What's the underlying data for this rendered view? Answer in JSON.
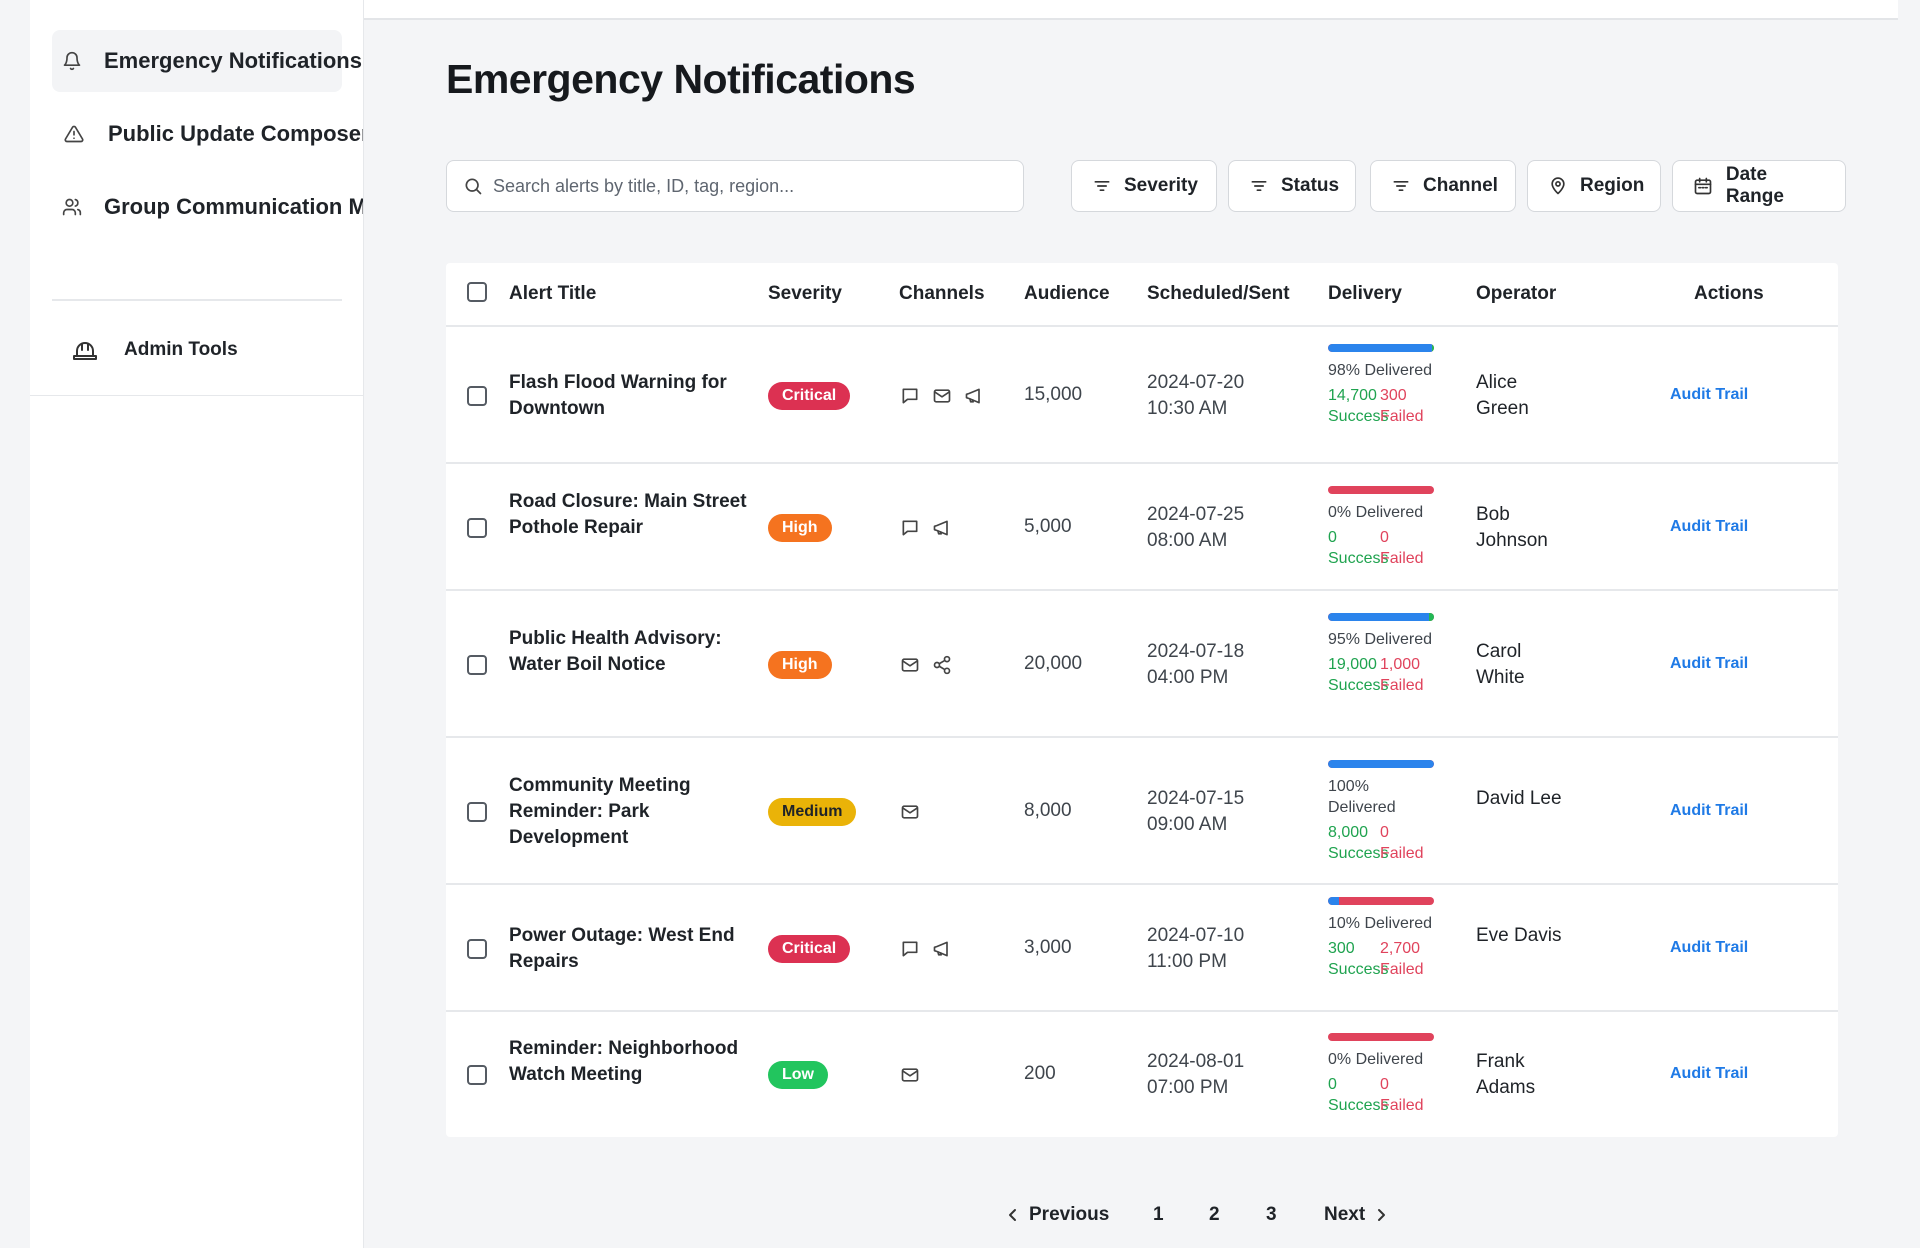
{
  "sidebar": {
    "items": [
      {
        "label": "Emergency Notifications",
        "icon": "bell-icon"
      },
      {
        "label": "Public Update Composer",
        "icon": "warning-icon"
      },
      {
        "label": "Group Communication Manager",
        "icon": "users-icon"
      }
    ],
    "admin": {
      "label": "Admin Tools",
      "icon": "hard-hat-icon"
    }
  },
  "page": {
    "title": "Emergency Notifications"
  },
  "search": {
    "placeholder": "Search alerts by title, ID, tag, region..."
  },
  "filters": [
    {
      "label": "Severity",
      "icon": "filter-icon"
    },
    {
      "label": "Status",
      "icon": "filter-icon"
    },
    {
      "label": "Channel",
      "icon": "filter-icon"
    },
    {
      "label": "Region",
      "icon": "map-pin-icon"
    },
    {
      "label": "Date Range",
      "icon": "calendar-icon"
    }
  ],
  "table": {
    "headers": {
      "title": "Alert Title",
      "severity": "Severity",
      "channels": "Channels",
      "audience": "Audience",
      "scheduled": "Scheduled/Sent",
      "delivery": "Delivery",
      "operator": "Operator",
      "actions": "Actions"
    },
    "success_label": "Success",
    "failed_label": "Failed",
    "rows": [
      {
        "title": "Flash Flood Warning for Downtown",
        "severity": "Critical",
        "channels": [
          "sms",
          "email",
          "megaphone"
        ],
        "audience": "15,000",
        "date": "2024-07-20",
        "time": "10:30 AM",
        "delivered_pct": 98,
        "delivered_text": "98% Delivered",
        "success": "14,700",
        "failed": "300",
        "operator": "Alice Green",
        "action": "Audit Trail"
      },
      {
        "title": "Road Closure: Main Street Pothole Repair",
        "severity": "High",
        "channels": [
          "sms",
          "megaphone"
        ],
        "audience": "5,000",
        "date": "2024-07-25",
        "time": "08:00 AM",
        "delivered_pct": 0,
        "delivered_text": "0% Delivered",
        "success": "0",
        "failed": "0",
        "operator": "Bob Johnson",
        "action": "Audit Trail"
      },
      {
        "title": "Public Health Advisory: Water Boil Notice",
        "severity": "High",
        "channels": [
          "email",
          "share"
        ],
        "audience": "20,000",
        "date": "2024-07-18",
        "time": "04:00 PM",
        "delivered_pct": 95,
        "delivered_text": "95% Delivered",
        "success": "19,000",
        "failed": "1,000",
        "operator": "Carol White",
        "action": "Audit Trail"
      },
      {
        "title": "Community Meeting Reminder: Park Development",
        "severity": "Medium",
        "channels": [
          "email"
        ],
        "audience": "8,000",
        "date": "2024-07-15",
        "time": "09:00 AM",
        "delivered_pct": 100,
        "delivered_text": "100% Delivered",
        "success": "8,000",
        "failed": "0",
        "operator": "David Lee",
        "action": "Audit Trail"
      },
      {
        "title": "Power Outage: West End Repairs",
        "severity": "Critical",
        "channels": [
          "sms",
          "megaphone"
        ],
        "audience": "3,000",
        "date": "2024-07-10",
        "time": "11:00 PM",
        "delivered_pct": 10,
        "delivered_text": "10% Delivered",
        "success": "300",
        "failed": "2,700",
        "operator": "Eve Davis",
        "action": "Audit Trail"
      },
      {
        "title": "Reminder: Neighborhood Watch Meeting",
        "severity": "Low",
        "channels": [
          "email"
        ],
        "audience": "200",
        "date": "2024-08-01",
        "time": "07:00 PM",
        "delivered_pct": 0,
        "delivered_text": "0% Delivered",
        "success": "0",
        "failed": "0",
        "operator": "Frank Adams",
        "action": "Audit Trail"
      }
    ]
  },
  "severity_colors": {
    "Critical": "#dc3152",
    "High": "#f5731f",
    "Medium": "#eab308",
    "Low": "#22c55e"
  },
  "pagination": {
    "previous": "Previous",
    "pages": [
      "1",
      "2",
      "3"
    ],
    "next": "Next"
  }
}
